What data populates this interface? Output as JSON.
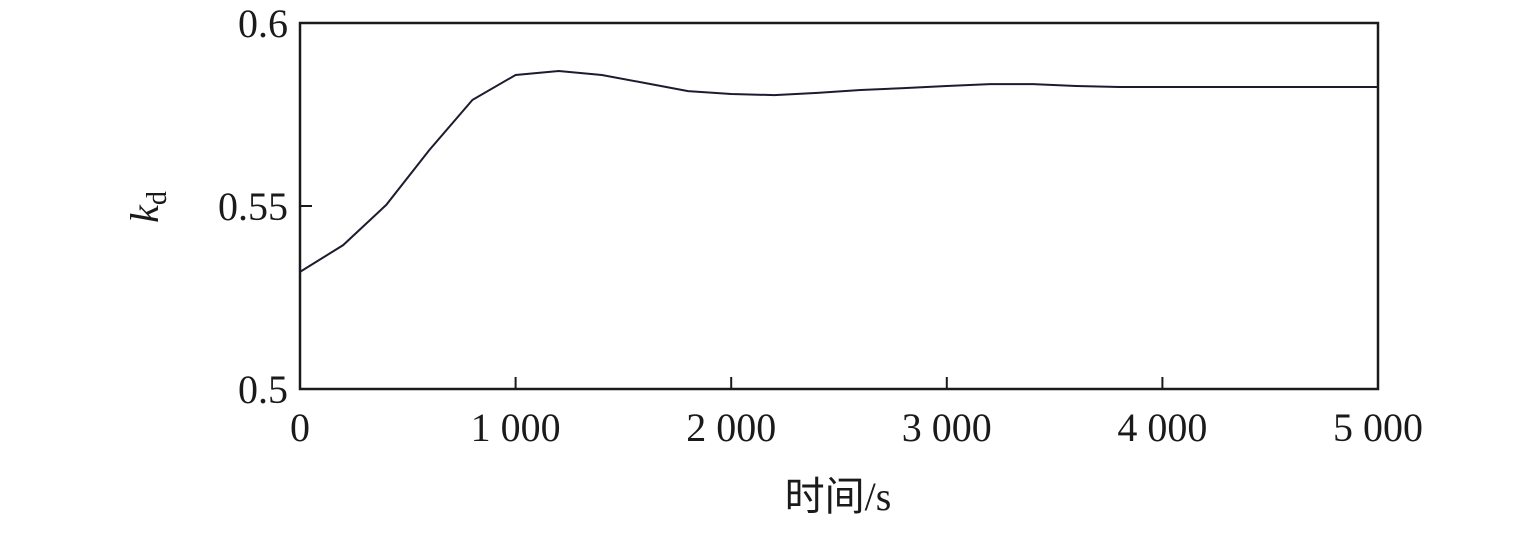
{
  "chart_data": {
    "type": "line",
    "xlabel": "时间/s",
    "ylabel": {
      "main": "k",
      "sub": "d"
    },
    "x": [
      0,
      200,
      400,
      600,
      800,
      1000,
      1200,
      1400,
      1600,
      1800,
      2000,
      2200,
      2400,
      2600,
      2800,
      3000,
      3200,
      3400,
      3600,
      3800,
      4000,
      4200,
      4400,
      4600,
      4800,
      5000
    ],
    "series": [
      {
        "color": "#1c1c30",
        "values": [
          0.532,
          0.5393,
          0.5503,
          0.5653,
          0.579,
          0.5858,
          0.5869,
          0.5858,
          0.5836,
          0.5814,
          0.5806,
          0.5803,
          0.5809,
          0.5817,
          0.5822,
          0.5828,
          0.5833,
          0.5833,
          0.5828,
          0.5825,
          0.5825,
          0.5825,
          0.5825,
          0.5825,
          0.5825,
          0.5825
        ]
      }
    ],
    "xlim": [
      0,
      5000
    ],
    "xticks": [
      0,
      {
        "value": 1000,
        "label": "1 000"
      },
      {
        "value": 2000,
        "label": "2 000"
      },
      {
        "value": 3000,
        "label": "3 000"
      },
      {
        "value": 4000,
        "label": "4 000"
      },
      {
        "value": 5000,
        "label": "5 000"
      }
    ],
    "ylim": [
      0.5,
      0.6
    ],
    "yticks": [
      0.5,
      0.55,
      0.6
    ],
    "grid": false
  }
}
